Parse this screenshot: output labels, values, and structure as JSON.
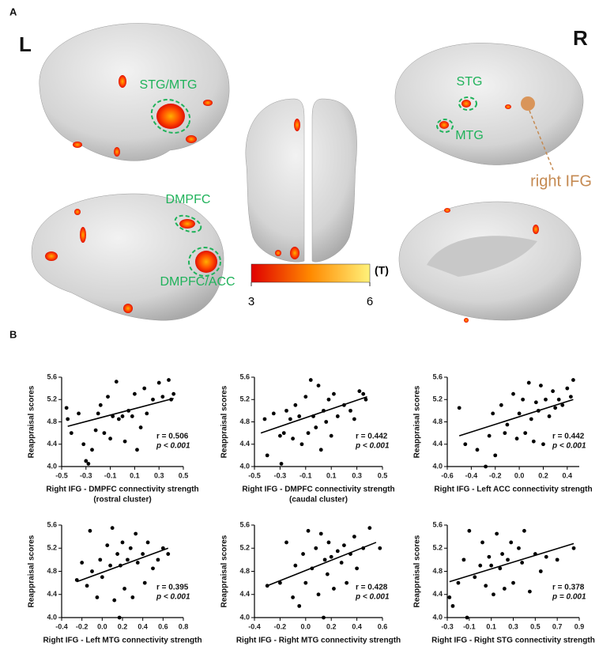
{
  "brain_panel": {
    "panel_label": "A",
    "left_label": "L",
    "right_label": "R",
    "region_labels": [
      "STG/MTG",
      "DMPFC",
      "DMPFC/ACC",
      "STG",
      "MTG"
    ],
    "seed_label": "right IFG",
    "colorbar": {
      "min": 3,
      "max": 6,
      "unit": "(T)"
    }
  },
  "panel_b_label": "B",
  "chart_data": [
    {
      "type": "scatter",
      "color": "#000000",
      "ylabel": "Reappraisal scores",
      "xlabel": "Right IFG - DMPFC connectivity strength",
      "xlabel_note": "(rostral cluster)",
      "xlim": [
        -0.5,
        0.5
      ],
      "xticks": [
        -0.5,
        -0.3,
        -0.1,
        0.1,
        0.3,
        0.5
      ],
      "ylim": [
        4,
        5.6
      ],
      "yticks": [
        {
          "value": 4,
          "label": "4.0"
        },
        4.4,
        4.8,
        5.2,
        5.6
      ],
      "x": [
        -0.46,
        -0.45,
        -0.42,
        -0.36,
        -0.32,
        -0.3,
        -0.28,
        -0.25,
        -0.22,
        -0.2,
        -0.18,
        -0.15,
        -0.12,
        -0.1,
        -0.08,
        -0.05,
        -0.03,
        0.0,
        0.02,
        0.05,
        0.08,
        0.1,
        0.12,
        0.15,
        0.18,
        0.2,
        0.25,
        0.3,
        0.33,
        0.38,
        0.4,
        0.42
      ],
      "values": [
        5.05,
        4.85,
        4.6,
        4.95,
        4.4,
        4.1,
        4.05,
        4.3,
        4.65,
        4.95,
        5.1,
        4.6,
        5.25,
        4.5,
        4.9,
        5.52,
        4.85,
        4.9,
        4.45,
        5.0,
        4.9,
        5.3,
        4.3,
        4.7,
        5.4,
        4.95,
        5.2,
        5.5,
        5.25,
        5.55,
        5.2,
        5.3
      ],
      "trend": {
        "x": [
          -0.45,
          0.42
        ],
        "y": [
          4.72,
          5.22
        ]
      },
      "annotations": [
        "r = 0.506",
        "p < 0.001"
      ]
    },
    {
      "type": "scatter",
      "color": "#000000",
      "ylabel": "Reappraisal scores",
      "xlabel": "Right IFG - DMPFC connectivity strength",
      "xlabel_note": "(caudal cluster)",
      "xlim": [
        -0.5,
        0.5
      ],
      "xticks": [
        -0.5,
        -0.3,
        -0.1,
        0.1,
        0.3,
        0.5
      ],
      "ylim": [
        4,
        5.6
      ],
      "yticks": [
        {
          "value": 4,
          "label": "4.0"
        },
        4.4,
        4.8,
        5.2,
        5.6
      ],
      "x": [
        -0.42,
        -0.4,
        -0.35,
        -0.3,
        -0.29,
        -0.27,
        -0.25,
        -0.22,
        -0.2,
        -0.18,
        -0.15,
        -0.13,
        -0.1,
        -0.08,
        -0.06,
        -0.04,
        -0.02,
        0.0,
        0.02,
        0.04,
        0.06,
        0.08,
        0.1,
        0.12,
        0.15,
        0.2,
        0.25,
        0.28,
        0.32,
        0.35,
        0.37
      ],
      "values": [
        4.85,
        4.2,
        4.95,
        4.55,
        4.05,
        4.6,
        5.0,
        4.85,
        4.5,
        5.1,
        4.9,
        4.4,
        5.25,
        4.6,
        5.55,
        4.9,
        4.7,
        5.45,
        4.3,
        5.0,
        4.8,
        5.2,
        4.55,
        5.3,
        4.9,
        5.1,
        5.0,
        4.85,
        5.35,
        5.3,
        5.2
      ],
      "trend": {
        "x": [
          -0.45,
          0.38
        ],
        "y": [
          4.6,
          5.25
        ]
      },
      "annotations": [
        "r = 0.442",
        "p < 0.001"
      ]
    },
    {
      "type": "scatter",
      "color": "#000000",
      "ylabel": "Reappraisal scores",
      "xlabel": "Right IFG - Left ACC connectivity strength",
      "xlim": [
        -0.6,
        0.5
      ],
      "xticks": [
        -0.6,
        -0.4,
        -0.2,
        {
          "value": 0,
          "label": "0.0"
        },
        0.2,
        0.4
      ],
      "ylim": [
        4,
        5.6
      ],
      "yticks": [
        {
          "value": 4,
          "label": "4.0"
        },
        4.4,
        4.8,
        5.2,
        5.6
      ],
      "x": [
        -0.5,
        -0.45,
        -0.35,
        -0.28,
        -0.25,
        -0.22,
        -0.2,
        -0.15,
        -0.12,
        -0.1,
        -0.05,
        -0.02,
        0.0,
        0.03,
        0.05,
        0.08,
        0.1,
        0.12,
        0.14,
        0.16,
        0.18,
        0.2,
        0.22,
        0.25,
        0.28,
        0.3,
        0.33,
        0.36,
        0.4,
        0.43,
        0.45
      ],
      "values": [
        5.05,
        4.4,
        4.3,
        4.0,
        4.55,
        4.95,
        4.2,
        5.1,
        4.6,
        4.75,
        5.3,
        4.5,
        4.95,
        5.2,
        4.6,
        5.5,
        4.85,
        4.45,
        5.15,
        5.0,
        5.45,
        4.4,
        5.2,
        4.9,
        5.35,
        5.05,
        5.2,
        5.1,
        5.4,
        5.25,
        5.55
      ],
      "trend": {
        "x": [
          -0.5,
          0.45
        ],
        "y": [
          4.55,
          5.2
        ]
      },
      "annotations": [
        "r = 0.442",
        "p < 0.001"
      ]
    },
    {
      "type": "scatter",
      "color": "#000000",
      "ylabel": "Reappraisal scores",
      "xlabel": "Right IFG - Left MTG connectivity strength",
      "xlim": [
        -0.4,
        0.8
      ],
      "xticks": [
        -0.4,
        -0.2,
        {
          "value": 0,
          "label": "0.0"
        },
        0.2,
        0.4,
        0.6,
        0.8
      ],
      "ylim": [
        4,
        5.6
      ],
      "yticks": [
        {
          "value": 4,
          "label": "4.0"
        },
        4.4,
        4.8,
        5.2,
        5.6
      ],
      "x": [
        -0.25,
        -0.2,
        -0.15,
        -0.12,
        -0.1,
        -0.05,
        -0.02,
        0.0,
        0.05,
        0.08,
        0.1,
        0.12,
        0.15,
        0.17,
        0.18,
        0.2,
        0.22,
        0.25,
        0.28,
        0.3,
        0.33,
        0.35,
        0.4,
        0.42,
        0.45,
        0.5,
        0.55,
        0.6,
        0.65
      ],
      "values": [
        4.65,
        4.95,
        4.55,
        5.5,
        4.8,
        4.35,
        5.0,
        4.7,
        5.25,
        4.9,
        5.55,
        4.3,
        5.1,
        4.0,
        4.9,
        5.3,
        4.5,
        5.0,
        5.2,
        4.35,
        5.45,
        4.95,
        5.1,
        4.6,
        5.3,
        4.85,
        5.0,
        5.2,
        5.1
      ],
      "trend": {
        "x": [
          -0.25,
          0.65
        ],
        "y": [
          4.62,
          5.2
        ]
      },
      "annotations": [
        "r = 0.395",
        "p < 0.001"
      ]
    },
    {
      "type": "scatter",
      "color": "#000000",
      "ylabel": "Reappraisal scores",
      "xlabel": "Right IFG - Right MTG connectivity strength",
      "xlim": [
        -0.4,
        0.6
      ],
      "xticks": [
        -0.4,
        -0.2,
        {
          "value": 0,
          "label": "0.0"
        },
        0.2,
        0.4,
        0.6
      ],
      "ylim": [
        4,
        5.6
      ],
      "yticks": [
        {
          "value": 4,
          "label": "4.0"
        },
        4.4,
        4.8,
        5.2,
        5.6
      ],
      "x": [
        -0.3,
        -0.2,
        -0.15,
        -0.1,
        -0.08,
        -0.05,
        -0.02,
        0.0,
        0.02,
        0.05,
        0.08,
        0.1,
        0.12,
        0.14,
        0.15,
        0.17,
        0.18,
        0.2,
        0.22,
        0.25,
        0.28,
        0.3,
        0.32,
        0.35,
        0.38,
        0.4,
        0.45,
        0.5,
        0.58
      ],
      "values": [
        4.55,
        4.6,
        5.3,
        4.35,
        4.9,
        4.2,
        5.1,
        4.6,
        5.5,
        4.85,
        5.2,
        4.4,
        5.45,
        4.0,
        5.0,
        4.75,
        5.3,
        5.05,
        4.5,
        5.15,
        4.95,
        5.25,
        4.6,
        5.1,
        5.4,
        4.85,
        5.2,
        5.55,
        5.2
      ],
      "trend": {
        "x": [
          -0.3,
          0.55
        ],
        "y": [
          4.55,
          5.3
        ]
      },
      "annotations": [
        "r = 0.428",
        "p < 0.001"
      ]
    },
    {
      "type": "scatter",
      "color": "#000000",
      "ylabel": "Reappraisal scores",
      "xlabel": "Right IFG - Right STG connectivity strength",
      "xlim": [
        -0.3,
        0.9
      ],
      "xticks": [
        -0.3,
        -0.1,
        0.1,
        0.3,
        0.5,
        0.7,
        0.9
      ],
      "ylim": [
        4,
        5.6
      ],
      "yticks": [
        {
          "value": 4,
          "label": "4.0"
        },
        4.4,
        4.8,
        5.2,
        5.6
      ],
      "x": [
        -0.28,
        -0.25,
        -0.2,
        -0.15,
        -0.12,
        -0.1,
        -0.05,
        0.0,
        0.02,
        0.05,
        0.08,
        0.1,
        0.12,
        0.15,
        0.18,
        0.2,
        0.22,
        0.25,
        0.28,
        0.3,
        0.35,
        0.38,
        0.4,
        0.45,
        0.5,
        0.55,
        0.6,
        0.7,
        0.85
      ],
      "values": [
        4.35,
        4.2,
        4.6,
        5.0,
        4.0,
        5.5,
        4.7,
        4.9,
        5.3,
        4.55,
        5.05,
        4.9,
        4.4,
        5.45,
        4.85,
        5.1,
        4.5,
        5.0,
        5.3,
        4.6,
        5.2,
        4.95,
        5.5,
        4.45,
        5.1,
        4.8,
        5.05,
        5.0,
        5.2
      ],
      "trend": {
        "x": [
          -0.28,
          0.85
        ],
        "y": [
          4.62,
          5.28
        ]
      },
      "annotations": [
        "r = 0.378",
        "p = 0.001"
      ]
    }
  ]
}
